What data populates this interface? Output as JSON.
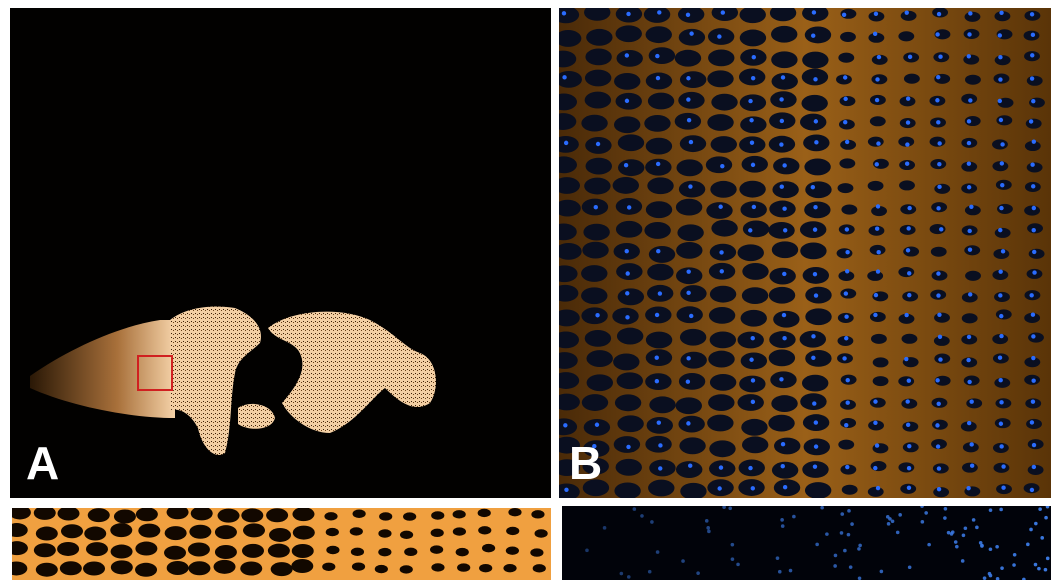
{
  "figure": {
    "panels": [
      {
        "id": "A",
        "label": "A"
      },
      {
        "id": "B",
        "label": "B"
      }
    ],
    "colors": {
      "stain_orange": "#e8962e",
      "nuclei_blue": "#2a6cff",
      "roi_box": "#d02020",
      "background": "#000000"
    }
  }
}
